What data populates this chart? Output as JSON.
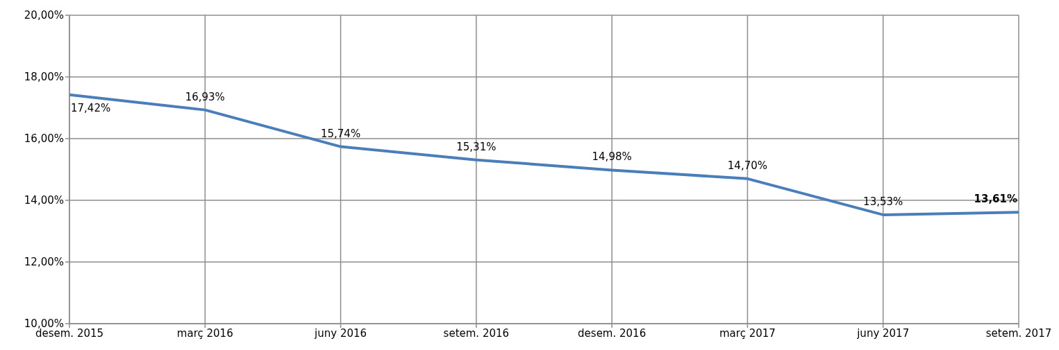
{
  "chart_data": {
    "type": "line",
    "categories": [
      "desem. 2015",
      "març 2016",
      "juny 2016",
      "setem. 2016",
      "desem. 2016",
      "març 2017",
      "juny 2017",
      "setem. 2017"
    ],
    "series": [
      {
        "color": "#4a7ebb",
        "values": [
          17.42,
          16.93,
          15.74,
          15.31,
          14.98,
          14.7,
          13.53,
          13.61
        ],
        "value_labels": [
          "17,42%",
          "16,93%",
          "15,74%",
          "15,31%",
          "14,98%",
          "14,70%",
          "13,53%",
          "13,61%"
        ]
      }
    ],
    "ylim": [
      10,
      20
    ],
    "yticks": [
      {
        "value": 10,
        "label": "10,00%"
      },
      {
        "value": 12,
        "label": "12,00%"
      },
      {
        "value": 14,
        "label": "14,00%"
      },
      {
        "value": 16,
        "label": "16,00%"
      },
      {
        "value": 18,
        "label": "18,00%"
      },
      {
        "value": 20,
        "label": "20,00%"
      }
    ],
    "grid": true,
    "marker": "none",
    "line_style": "solid"
  }
}
